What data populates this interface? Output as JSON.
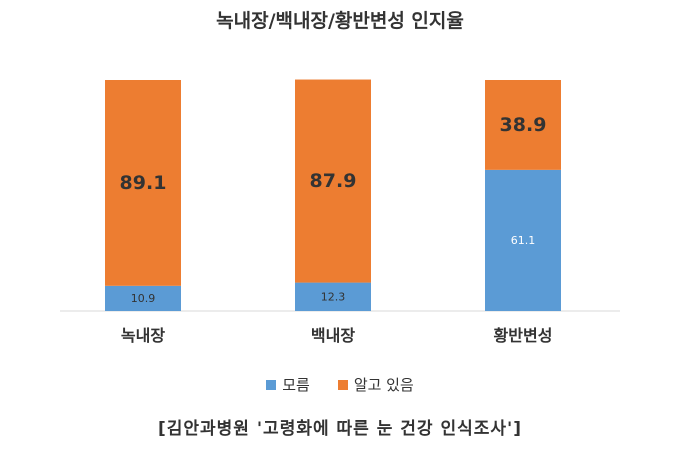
{
  "chart_data": {
    "type": "bar",
    "stacked": true,
    "title": "녹내장/백내장/황반변성 인지율",
    "categories": [
      "녹내장",
      "백내장",
      "황반변성"
    ],
    "series": [
      {
        "name": "모름",
        "values": [
          10.9,
          12.3,
          61.1
        ],
        "color": "#5B9BD5"
      },
      {
        "name": "알고 있음",
        "values": [
          89.1,
          87.9,
          38.9
        ],
        "color": "#ED7D31"
      }
    ],
    "ylim": [
      0,
      100
    ],
    "grid": false,
    "legend": "bottom",
    "xlabel": "",
    "ylabel": ""
  },
  "source_note": "[김안과병원 '고령화에 따른 눈 건강 인식조사']"
}
